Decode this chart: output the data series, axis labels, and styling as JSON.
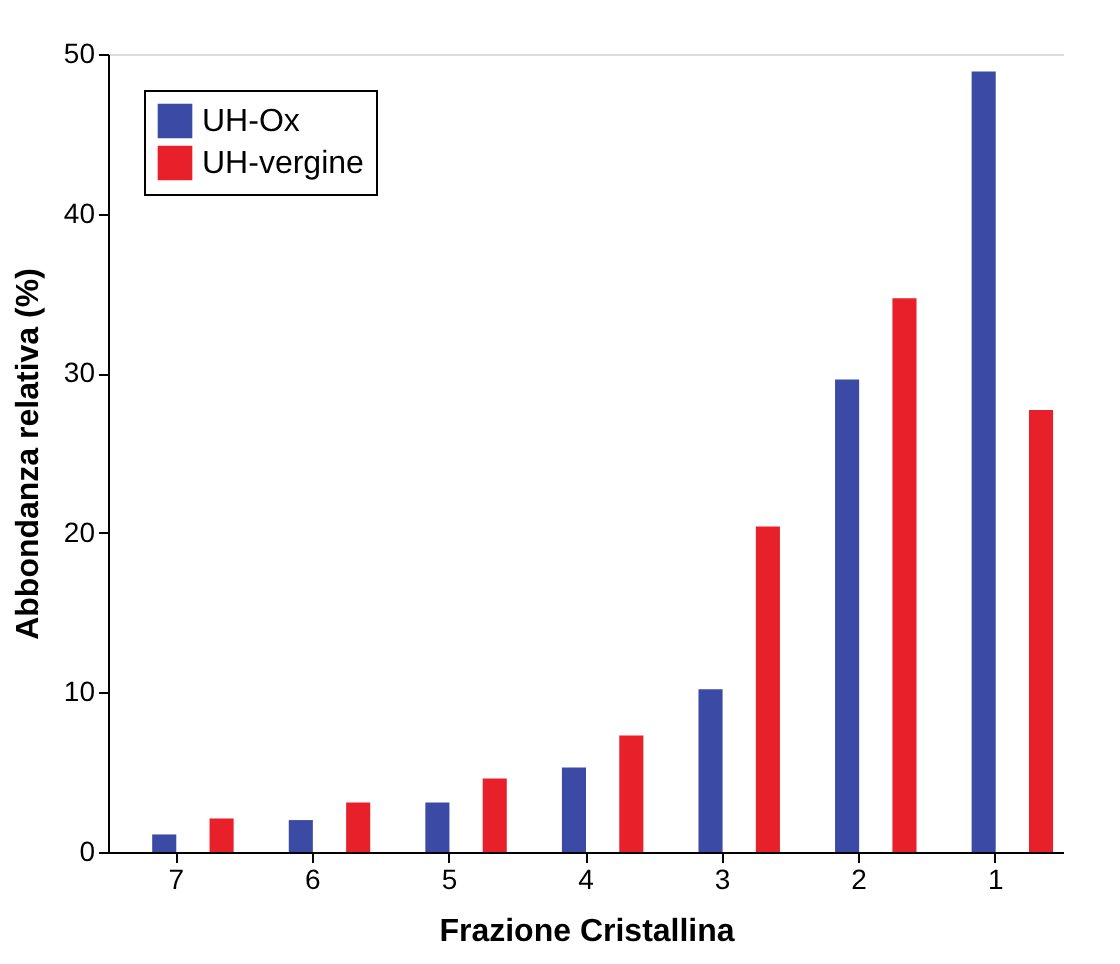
{
  "chart_data": {
    "type": "bar",
    "xlabel": "Frazione Cristallina",
    "ylabel": "Abbondanza relativa (%)",
    "categories": [
      "7",
      "6",
      "5",
      "4",
      "3",
      "2",
      "1"
    ],
    "series": [
      {
        "name": "UH-Ox",
        "color": "#3a4aa5",
        "values": [
          1.1,
          2.0,
          3.1,
          5.3,
          10.2,
          29.6,
          48.9
        ]
      },
      {
        "name": "UH-vergine",
        "color": "#e8202a",
        "values": [
          2.1,
          3.1,
          4.6,
          7.3,
          20.4,
          34.7,
          27.7
        ]
      }
    ],
    "ylim": [
      0,
      50
    ],
    "yticks": [
      0,
      10,
      20,
      30,
      40,
      50
    ],
    "grid": false,
    "legend": "top left"
  }
}
